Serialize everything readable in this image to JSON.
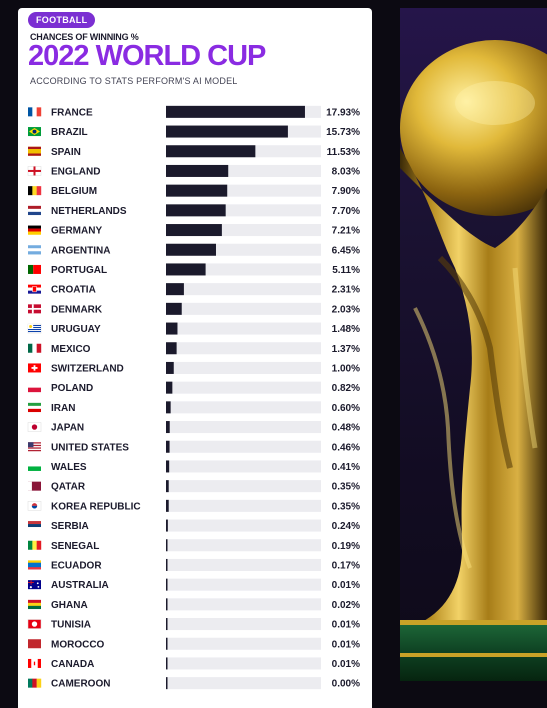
{
  "header": {
    "badge": "FOOTBALL",
    "kicker": "CHANCES OF WINNING %",
    "title": "2022 WORLD CUP",
    "subtitle": "ACCORDING TO STATS PERFORM'S AI MODEL"
  },
  "colors": {
    "accent": "#8a2be2",
    "badge": "#7b2fd2",
    "bar": "#1b1a2c",
    "track": "#ececf0",
    "trophy_gold": "#c9a227"
  },
  "chart_data": {
    "type": "bar",
    "orientation": "horizontal",
    "title": "2022 WORLD CUP",
    "subtitle": "ACCORDING TO STATS PERFORM'S AI MODEL",
    "xlim": [
      0,
      20
    ],
    "categories": [
      "FRANCE",
      "BRAZIL",
      "SPAIN",
      "ENGLAND",
      "BELGIUM",
      "NETHERLANDS",
      "GERMANY",
      "ARGENTINA",
      "PORTUGAL",
      "CROATIA",
      "DENMARK",
      "URUGUAY",
      "MEXICO",
      "SWITZERLAND",
      "POLAND",
      "IRAN",
      "JAPAN",
      "UNITED STATES",
      "WALES",
      "QATAR",
      "KOREA REPUBLIC",
      "SERBIA",
      "SENEGAL",
      "ECUADOR",
      "AUSTRALIA",
      "GHANA",
      "TUNISIA",
      "MOROCCO",
      "CANADA",
      "CAMEROON"
    ],
    "values": [
      17.93,
      15.73,
      11.53,
      8.03,
      7.9,
      7.7,
      7.21,
      6.45,
      5.11,
      2.31,
      2.03,
      1.48,
      1.37,
      1.0,
      0.82,
      0.6,
      0.48,
      0.46,
      0.41,
      0.35,
      0.35,
      0.24,
      0.19,
      0.17,
      0.01,
      0.02,
      0.01,
      0.01,
      0.01,
      0.0
    ],
    "labels": [
      "17.93%",
      "15.73%",
      "11.53%",
      "8.03%",
      "7.90%",
      "7.70%",
      "7.21%",
      "6.45%",
      "5.11%",
      "2.31%",
      "2.03%",
      "1.48%",
      "1.37%",
      "1.00%",
      "0.82%",
      "0.60%",
      "0.48%",
      "0.46%",
      "0.41%",
      "0.35%",
      "0.35%",
      "0.24%",
      "0.19%",
      "0.17%",
      "0.01%",
      "0.02%",
      "0.01%",
      "0.01%",
      "0.01%",
      "0.00%"
    ],
    "flags": [
      {
        "type": "v3",
        "c": [
          "#0055a4",
          "#ffffff",
          "#ef4135"
        ]
      },
      {
        "type": "brazil",
        "c": [
          "#009c3b",
          "#ffdf00",
          "#002776"
        ]
      },
      {
        "type": "h3w",
        "c": [
          "#aa151b",
          "#f1bf00",
          "#aa151b"
        ]
      },
      {
        "type": "cross",
        "c": [
          "#ffffff",
          "#ce1124"
        ]
      },
      {
        "type": "v3",
        "c": [
          "#000000",
          "#fdda24",
          "#ef3340"
        ]
      },
      {
        "type": "h3",
        "c": [
          "#ae1c28",
          "#ffffff",
          "#21468b"
        ]
      },
      {
        "type": "h3",
        "c": [
          "#000000",
          "#dd0000",
          "#ffce00"
        ]
      },
      {
        "type": "h3",
        "c": [
          "#74acdf",
          "#ffffff",
          "#74acdf"
        ]
      },
      {
        "type": "v2",
        "c": [
          "#006600",
          "#ff0000"
        ]
      },
      {
        "type": "check",
        "c": [
          "#ff0000",
          "#ffffff",
          "#171796"
        ]
      },
      {
        "type": "nordic",
        "c": [
          "#c60c30",
          "#ffffff"
        ]
      },
      {
        "type": "stripes",
        "c": [
          "#ffffff",
          "#0038a8"
        ]
      },
      {
        "type": "v3",
        "c": [
          "#006847",
          "#ffffff",
          "#ce1126"
        ]
      },
      {
        "type": "swiss",
        "c": [
          "#ff0000",
          "#ffffff"
        ]
      },
      {
        "type": "h2",
        "c": [
          "#ffffff",
          "#dc143c"
        ]
      },
      {
        "type": "h3",
        "c": [
          "#239f40",
          "#ffffff",
          "#da0000"
        ]
      },
      {
        "type": "disc",
        "c": [
          "#ffffff",
          "#bc002d"
        ]
      },
      {
        "type": "usa",
        "c": [
          "#b22234",
          "#ffffff",
          "#3c3b6e"
        ]
      },
      {
        "type": "h2",
        "c": [
          "#ffffff",
          "#00b140"
        ]
      },
      {
        "type": "qatar",
        "c": [
          "#ffffff",
          "#8a1538"
        ]
      },
      {
        "type": "disc2",
        "c": [
          "#ffffff",
          "#cd2e3a",
          "#0047a0"
        ]
      },
      {
        "type": "h3",
        "c": [
          "#c6363c",
          "#0c4076",
          "#ffffff"
        ]
      },
      {
        "type": "v3",
        "c": [
          "#00853f",
          "#fdef42",
          "#e31b23"
        ]
      },
      {
        "type": "h3w",
        "c": [
          "#ffd100",
          "#0072ce",
          "#ef3340"
        ]
      },
      {
        "type": "aus",
        "c": [
          "#00008b",
          "#ffffff",
          "#cf142b"
        ]
      },
      {
        "type": "h3",
        "c": [
          "#ce1126",
          "#fcd116",
          "#006b3f"
        ]
      },
      {
        "type": "disc",
        "c": [
          "#e70013",
          "#ffffff"
        ]
      },
      {
        "type": "solid",
        "c": [
          "#c1272d"
        ]
      },
      {
        "type": "v3w",
        "c": [
          "#ff0000",
          "#ffffff",
          "#ff0000"
        ]
      },
      {
        "type": "v3",
        "c": [
          "#007a5e",
          "#ce1126",
          "#fcd116"
        ]
      }
    ]
  }
}
